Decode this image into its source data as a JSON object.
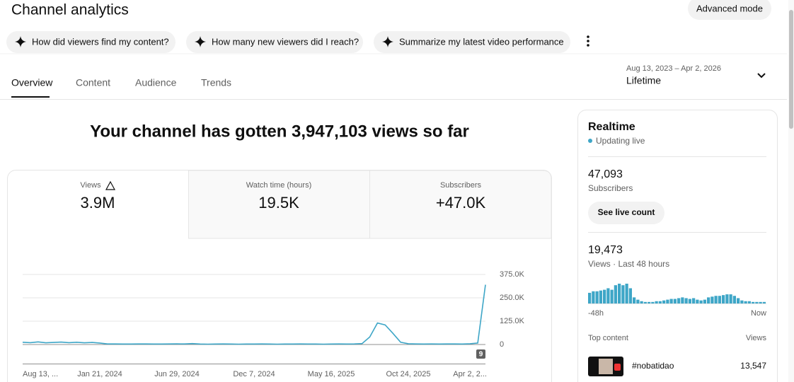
{
  "header": {
    "title": "Channel analytics",
    "advanced_mode": "Advanced mode"
  },
  "suggestions": [
    "How did viewers find my content?",
    "How many new viewers did I reach?",
    "Summarize my latest video performance"
  ],
  "tabs": [
    "Overview",
    "Content",
    "Audience",
    "Trends"
  ],
  "date_range": {
    "range": "Aug 13, 2023 – Apr 2, 2026",
    "period": "Lifetime"
  },
  "headline": "Your channel has gotten 3,947,103 views so far",
  "metrics": [
    {
      "label": "Views",
      "value": "3.9M"
    },
    {
      "label": "Watch time (hours)",
      "value": "19.5K"
    },
    {
      "label": "Subscribers",
      "value": "+47.0K"
    }
  ],
  "chart_data": [
    {
      "type": "line",
      "color": "#3ea6c7",
      "annotation": "9",
      "categories": [
        "Aug 13, ...",
        null,
        null,
        null,
        null,
        null,
        null,
        null,
        null,
        null,
        "Jan 21, 2024",
        null,
        null,
        null,
        null,
        null,
        null,
        null,
        null,
        null,
        "Jun 29, 2024",
        null,
        null,
        null,
        null,
        null,
        null,
        null,
        null,
        null,
        "Dec 7, 2024",
        null,
        null,
        null,
        null,
        null,
        null,
        null,
        null,
        null,
        "May 16, 2025",
        null,
        null,
        null,
        null,
        null,
        null,
        null,
        null,
        null,
        "Oct 24, 2025",
        null,
        null,
        null,
        null,
        null,
        null,
        null,
        null,
        null,
        "Apr 2, 2..."
      ],
      "values": [
        12000,
        10000,
        14000,
        9000,
        11000,
        13000,
        10000,
        12000,
        9000,
        11000,
        8000,
        3000,
        3000,
        2500,
        2500,
        3000,
        3000,
        2500,
        2500,
        3000,
        3500,
        3000,
        5000,
        2500,
        2000,
        2500,
        3000,
        2500,
        2000,
        2500,
        2500,
        3000,
        2500,
        2000,
        2500,
        2500,
        3000,
        2500,
        2500,
        2000,
        2500,
        3000,
        2500,
        3000,
        5000,
        40000,
        115000,
        105000,
        60000,
        12000,
        4000,
        3000,
        2500,
        3000,
        2500,
        3000,
        3000,
        2500,
        4000,
        8000,
        320000
      ],
      "ylim": [
        0,
        375000
      ],
      "yticks": [
        {
          "value": 0,
          "label": "0"
        },
        {
          "value": 125000,
          "label": "125.0K"
        },
        {
          "value": 250000,
          "label": "250.0K"
        },
        {
          "value": 375000,
          "label": "375.0K"
        }
      ],
      "grid": true
    },
    {
      "type": "bar",
      "color": "#3ea6c7",
      "categories": [
        "-48h",
        null,
        null,
        null,
        null,
        null,
        null,
        null,
        null,
        null,
        null,
        null,
        null,
        null,
        null,
        null,
        null,
        null,
        null,
        null,
        null,
        null,
        null,
        null,
        null,
        null,
        null,
        null,
        null,
        null,
        null,
        null,
        null,
        null,
        null,
        null,
        null,
        null,
        null,
        null,
        null,
        null,
        null,
        null,
        null,
        null,
        null,
        "Now"
      ],
      "values": [
        14,
        16,
        16,
        17,
        18,
        20,
        18,
        24,
        26,
        24,
        26,
        20,
        8,
        5,
        3,
        2,
        2,
        2,
        3,
        3,
        4,
        5,
        6,
        6,
        7,
        8,
        7,
        6,
        7,
        5,
        4,
        5,
        8,
        9,
        10,
        10,
        11,
        12,
        12,
        10,
        7,
        4,
        3,
        3,
        2,
        2,
        2,
        2
      ]
    }
  ],
  "realtime": {
    "title": "Realtime",
    "status": "Updating live",
    "subscribers": {
      "value": "47,093",
      "label": "Subscribers"
    },
    "button": "See live count",
    "views": {
      "value": "19,473",
      "label": "Views · Last 48 hours"
    },
    "top_content": {
      "title": "Top content",
      "column": "Views",
      "items": [
        {
          "title": "#nobatidao",
          "views": "13,547"
        }
      ]
    }
  }
}
